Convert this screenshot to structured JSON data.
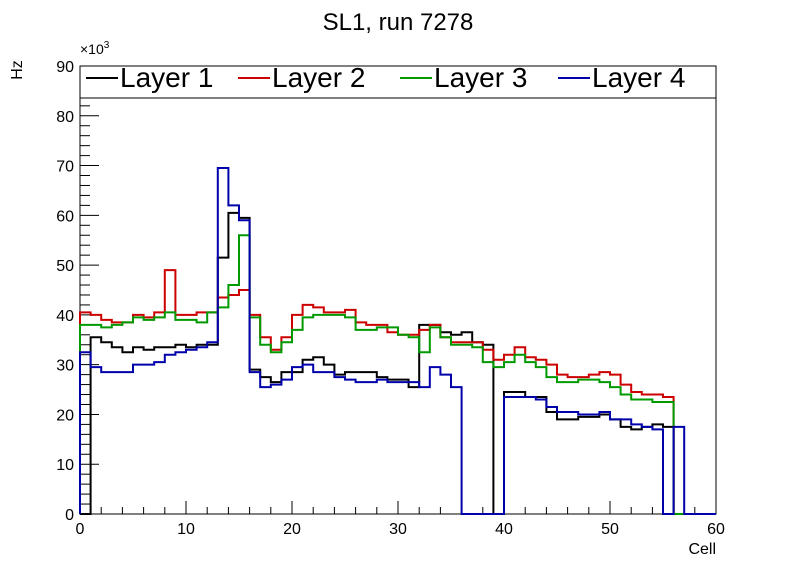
{
  "chart_data": {
    "type": "line",
    "style": "step-histogram",
    "title": "SL1, run 7278",
    "xlabel": "Cell",
    "ylabel": "Hz",
    "y_multiplier_label": "×10",
    "y_multiplier_exp": "3",
    "xlim": [
      0,
      60
    ],
    "ylim": [
      0,
      90
    ],
    "x_ticks": [
      "0",
      "10",
      "20",
      "30",
      "40",
      "50",
      "60"
    ],
    "y_ticks": [
      "0",
      "10",
      "20",
      "30",
      "40",
      "50",
      "60",
      "70",
      "80",
      "90"
    ],
    "grid": false,
    "legend_position": "top",
    "bin_edges_start": 0,
    "bin_width": 1,
    "series": [
      {
        "name": "Layer 1",
        "color": "#000000",
        "values": [
          0,
          35.5,
          34.5,
          33.5,
          32.5,
          33.5,
          33,
          33.5,
          33.5,
          34,
          33.5,
          34,
          34,
          51.5,
          60.5,
          59.5,
          29,
          27.5,
          26.5,
          28.5,
          28.5,
          31,
          31.5,
          30,
          28,
          28.5,
          28.5,
          28.5,
          27.5,
          27,
          27,
          25.5,
          38,
          38,
          36.5,
          36,
          36.5,
          34.5,
          34,
          0,
          24.5,
          24.5,
          23.5,
          23.5,
          20.5,
          19,
          19,
          19.5,
          19.5,
          20,
          19,
          17.5,
          17,
          17.5,
          18,
          17.5,
          0,
          0,
          0,
          0
        ]
      },
      {
        "name": "Layer 2",
        "color": "#cc0000",
        "values": [
          40.5,
          40,
          39,
          38.5,
          38.5,
          40,
          39.5,
          40.5,
          49,
          40,
          40,
          40.5,
          40.5,
          43.5,
          44,
          45,
          40,
          35.5,
          33,
          35.5,
          40,
          42,
          41.5,
          40.5,
          40.5,
          41,
          38.5,
          38,
          38,
          36.5,
          36,
          36,
          37,
          38,
          35.5,
          34.5,
          34.5,
          34.5,
          33,
          31,
          32,
          33.5,
          31.5,
          31,
          30,
          28,
          27.5,
          27.5,
          28,
          28.5,
          28,
          26,
          24.5,
          24,
          24,
          23.5,
          0,
          0,
          0,
          0
        ]
      },
      {
        "name": "Layer 3",
        "color": "#009900",
        "values": [
          38,
          38,
          37.5,
          38,
          38.5,
          39.5,
          39,
          39.5,
          40.5,
          39,
          39,
          38.5,
          40.5,
          41.5,
          46,
          56,
          39.5,
          34,
          32.5,
          34.5,
          37,
          39.5,
          40,
          40,
          40,
          39.5,
          37,
          37,
          37.5,
          37.5,
          36,
          35.5,
          32.5,
          37.5,
          35.5,
          34,
          34,
          33.5,
          30.5,
          29.5,
          30.5,
          32,
          30.5,
          29.5,
          27.5,
          26.5,
          26.5,
          27,
          27,
          26.5,
          25.5,
          24,
          23,
          23,
          22.5,
          22.5,
          0,
          0,
          0,
          0
        ]
      },
      {
        "name": "Layer 4",
        "color": "#0000aa",
        "values": [
          32.5,
          29.5,
          28.5,
          28.5,
          28.5,
          30,
          30,
          30.5,
          32,
          32.5,
          33,
          33.5,
          34.5,
          69.5,
          62,
          59,
          28.5,
          25.5,
          26,
          27,
          29.5,
          30,
          28.5,
          28.5,
          27.5,
          27,
          26.5,
          26.5,
          27,
          26.5,
          26.5,
          26.5,
          25.5,
          29.5,
          28,
          25.5,
          0,
          0,
          0,
          0,
          23.5,
          23.5,
          23.5,
          23,
          21.5,
          20.5,
          20.5,
          20,
          20,
          20.5,
          19,
          19,
          18,
          17.5,
          17,
          0,
          17.5,
          0,
          0,
          0
        ]
      }
    ]
  }
}
